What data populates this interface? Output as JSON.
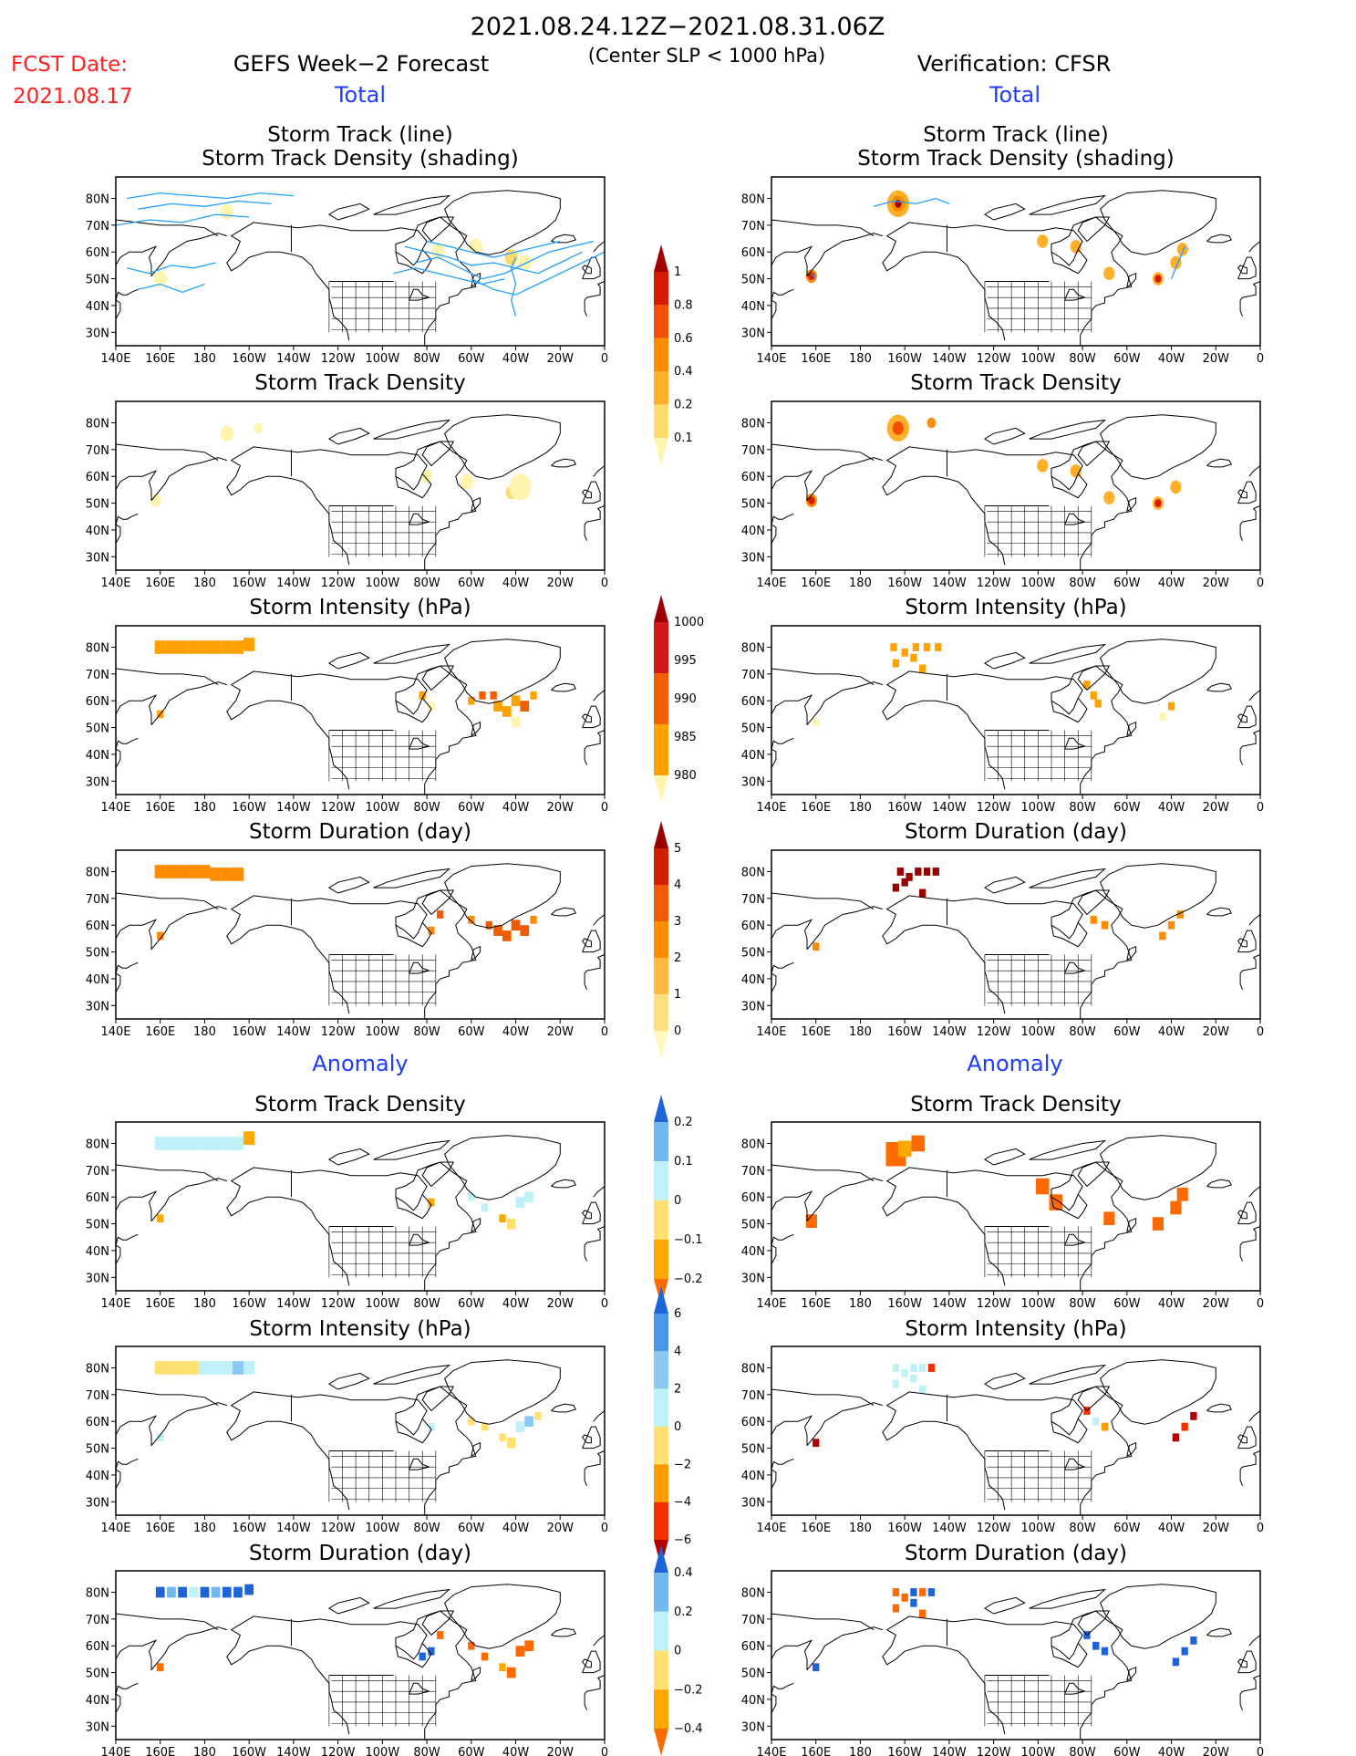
{
  "header": {
    "date_range": "2021.08.24.12Z−2021.08.31.06Z",
    "criterion": "(Center SLP < 1000 hPa)",
    "fcst_label": "FCST Date:",
    "fcst_date": "2021.08.17",
    "forecast_title": "GEFS Week−2 Forecast",
    "verification_title": "Verification: CFSR",
    "total_label": "Total",
    "anomaly_label": "Anomaly"
  },
  "panel_titles": {
    "track_line": "Storm Track (line)",
    "track_shading": "Storm Track Density (shading)",
    "density": "Storm Track Density",
    "intensity": "Storm Intensity (hPa)",
    "duration": "Storm Duration (day)"
  },
  "axes": {
    "lon_ticks": [
      "140E",
      "160E",
      "180",
      "160W",
      "140W",
      "120W",
      "100W",
      "80W",
      "60W",
      "40W",
      "20W",
      "0"
    ],
    "lat_ticks": [
      "80N",
      "70N",
      "60N",
      "50N",
      "40N",
      "30N"
    ]
  },
  "colorbars": [
    {
      "id": "total-density",
      "labels": [
        "0.1",
        "0.2",
        "0.4",
        "0.6",
        "0.8",
        "1"
      ],
      "colors": [
        "#fff4b0",
        "#ffdc6e",
        "#ffb028",
        "#ff8c00",
        "#f05000",
        "#d71a00",
        "#a00000"
      ]
    },
    {
      "id": "total-intensity",
      "labels": [
        "1000",
        "995",
        "990",
        "985",
        "980"
      ],
      "colors": [
        "#fff4b0",
        "#ffa200",
        "#f06000",
        "#d01818",
        "#9a0000"
      ]
    },
    {
      "id": "total-duration",
      "labels": [
        "0",
        "1",
        "2",
        "3",
        "4",
        "5"
      ],
      "colors": [
        "#fff8c0",
        "#ffe080",
        "#ffb840",
        "#ff8c00",
        "#f05a00",
        "#d02000",
        "#9a0000"
      ]
    },
    {
      "id": "anom-density",
      "labels": [
        "0.2",
        "0.1",
        "0",
        "−0.1",
        "−0.2"
      ],
      "colors": [
        "#ff6a00",
        "#ffa800",
        "#ffe070",
        "#c0f0f8",
        "#70b8f0",
        "#1e64d8"
      ]
    },
    {
      "id": "anom-intensity",
      "labels": [
        "6",
        "4",
        "2",
        "0",
        "−2",
        "−4",
        "−6"
      ],
      "colors": [
        "#b40000",
        "#f03000",
        "#ff9c00",
        "#ffe070",
        "#c0f0f8",
        "#8cc8f4",
        "#4a96e8",
        "#1e64d8"
      ]
    },
    {
      "id": "anom-duration",
      "labels": [
        "0.4",
        "0.2",
        "0",
        "−0.2",
        "−0.4"
      ],
      "colors": [
        "#ff6a00",
        "#ffa800",
        "#ffe070",
        "#c0f0f8",
        "#70b8f0",
        "#1e64d8"
      ]
    }
  ],
  "chart_data": [
    {
      "type": "heatmap",
      "title": "Storm Track (line) / Storm Track Density (shading)",
      "model": "GEFS",
      "overlay": "storm tracks",
      "xlim": [
        "140E",
        "0"
      ],
      "ylim": [
        "25N",
        "88N"
      ],
      "colorbar": "total-density"
    },
    {
      "type": "heatmap",
      "title": "Storm Track (line) / Storm Track Density (shading)",
      "model": "CFSR",
      "overlay": "storm tracks",
      "xlim": [
        "140E",
        "0"
      ],
      "ylim": [
        "25N",
        "88N"
      ],
      "colorbar": "total-density"
    },
    {
      "type": "heatmap",
      "title": "Storm Track Density",
      "model": "GEFS",
      "colorbar": "total-density"
    },
    {
      "type": "heatmap",
      "title": "Storm Track Density",
      "model": "CFSR",
      "colorbar": "total-density"
    },
    {
      "type": "heatmap",
      "title": "Storm Intensity (hPa)",
      "model": "GEFS",
      "colorbar": "total-intensity"
    },
    {
      "type": "heatmap",
      "title": "Storm Intensity (hPa)",
      "model": "CFSR",
      "colorbar": "total-intensity"
    },
    {
      "type": "heatmap",
      "title": "Storm Duration (day)",
      "model": "GEFS",
      "colorbar": "total-duration"
    },
    {
      "type": "heatmap",
      "title": "Storm Duration (day)",
      "model": "CFSR",
      "colorbar": "total-duration"
    },
    {
      "type": "heatmap",
      "title": "Storm Track Density",
      "model": "GEFS",
      "colorbar": "anom-density"
    },
    {
      "type": "heatmap",
      "title": "Storm Track Density",
      "model": "CFSR",
      "colorbar": "anom-density"
    },
    {
      "type": "heatmap",
      "title": "Storm Intensity (hPa)",
      "model": "GEFS",
      "colorbar": "anom-intensity"
    },
    {
      "type": "heatmap",
      "title": "Storm Intensity (hPa)",
      "model": "CFSR",
      "colorbar": "anom-intensity"
    },
    {
      "type": "heatmap",
      "title": "Storm Duration (day)",
      "model": "GEFS",
      "colorbar": "anom-duration"
    },
    {
      "type": "heatmap",
      "title": "Storm Duration (day)",
      "model": "CFSR",
      "colorbar": "anom-duration"
    }
  ]
}
